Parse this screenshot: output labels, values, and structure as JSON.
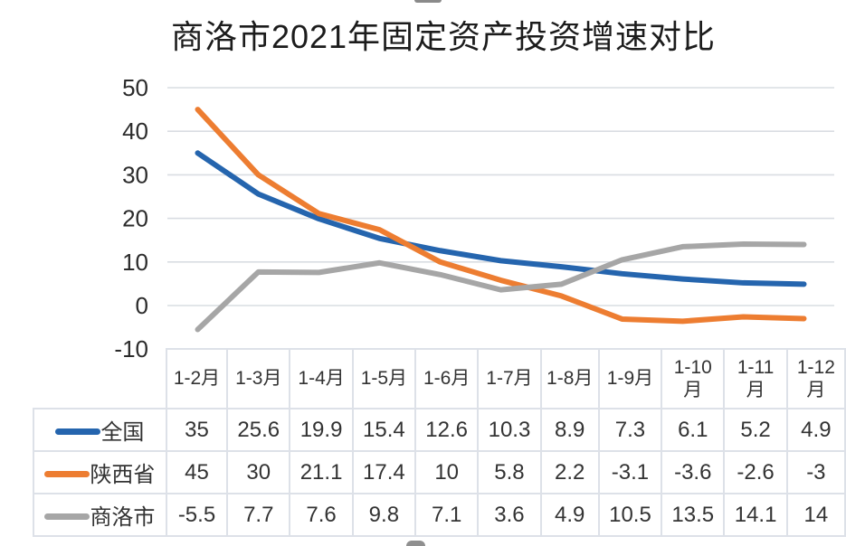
{
  "title": "商洛市2021年固定资产投资增速对比",
  "chart_data": {
    "type": "line",
    "title": "商洛市2021年固定资产投资增速对比",
    "categories": [
      "1-2月",
      "1-3月",
      "1-4月",
      "1-5月",
      "1-6月",
      "1-7月",
      "1-8月",
      "1-9月",
      "1-10月",
      "1-11月",
      "1-12月"
    ],
    "series": [
      {
        "id": "national",
        "name": "全国",
        "color": "#2565AE",
        "values": [
          35,
          25.6,
          19.9,
          15.4,
          12.6,
          10.3,
          8.9,
          7.3,
          6.1,
          5.2,
          4.9
        ]
      },
      {
        "id": "shaanxi",
        "name": "陕西省",
        "color": "#ED7D31",
        "values": [
          45,
          30,
          21.1,
          17.4,
          10,
          5.8,
          2.2,
          -3.1,
          -3.6,
          -2.6,
          -3
        ]
      },
      {
        "id": "shangluo",
        "name": "商洛市",
        "color": "#A6A6A6",
        "values": [
          -5.5,
          7.7,
          7.6,
          9.8,
          7.1,
          3.6,
          4.9,
          10.5,
          13.5,
          14.1,
          14
        ]
      }
    ],
    "yticks": [
      50,
      40,
      30,
      20,
      10,
      0,
      -10
    ],
    "ylim": [
      -10,
      50
    ],
    "xlabel": "",
    "ylabel": "",
    "grid": true,
    "legend_position": "table-left"
  },
  "colors": {
    "gridline": "#d9dde2",
    "table_border": "#dde1e8",
    "axis_text": "#2b2b2b"
  }
}
